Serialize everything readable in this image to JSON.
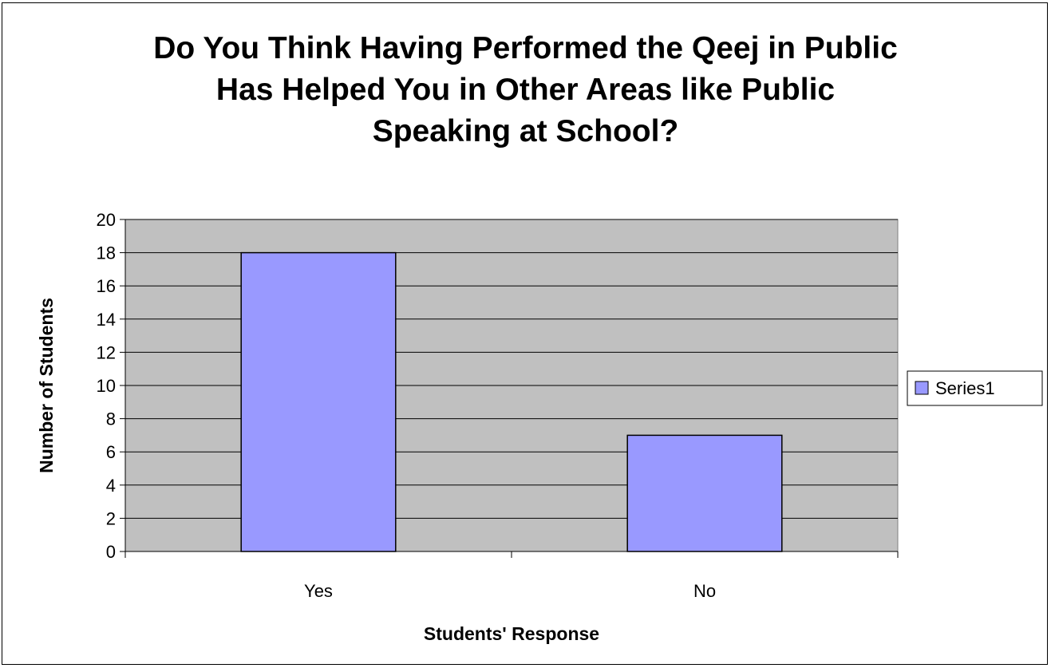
{
  "chart_data": {
    "type": "bar",
    "title_lines": [
      "Do You Think Having Performed the Qeej in Public",
      "Has Helped You in Other Areas like Public",
      "Speaking at School?"
    ],
    "categories": [
      "Yes",
      "No"
    ],
    "series": [
      {
        "name": "Series1",
        "values": [
          18,
          7
        ],
        "color": "#9999ff"
      }
    ],
    "xlabel": "Students' Response",
    "ylabel": "Number of Students",
    "ylim": [
      0,
      20
    ],
    "yticks": [
      0,
      2,
      4,
      6,
      8,
      10,
      12,
      14,
      16,
      18,
      20
    ],
    "grid": true,
    "plot_background": "#c0c0c0",
    "legend_position": "right"
  }
}
